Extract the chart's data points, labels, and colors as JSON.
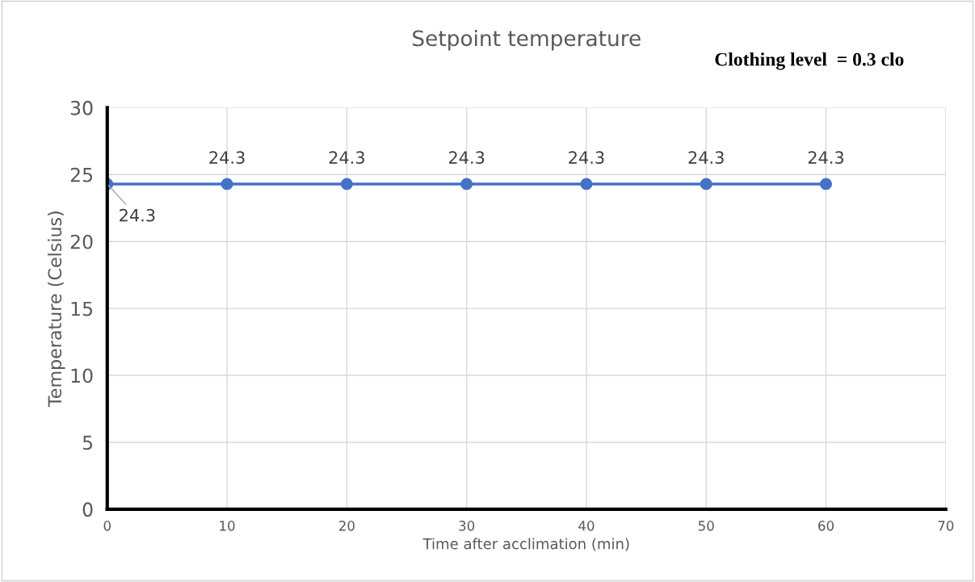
{
  "chart_data": {
    "type": "line",
    "title": "Setpoint temperature",
    "xlabel": "Time after acclimation (min)",
    "ylabel": "Temperature (Celsius)",
    "annotations": [
      "Clothing level  = 0.3 clo"
    ],
    "x": [
      0,
      10,
      20,
      30,
      40,
      50,
      60
    ],
    "series": [
      {
        "color": "#4472c4",
        "values": [
          24.3,
          24.3,
          24.3,
          24.3,
          24.3,
          24.3,
          24.3
        ]
      }
    ],
    "xlim": [
      0,
      70
    ],
    "xticks": [
      0,
      10,
      20,
      30,
      40,
      50,
      60,
      70
    ],
    "ylim": [
      0,
      30
    ],
    "yticks": [
      0,
      5,
      10,
      15,
      20,
      25,
      30
    ],
    "grid": true,
    "marker": "circle",
    "line_style": "solid",
    "data_labels": true
  }
}
